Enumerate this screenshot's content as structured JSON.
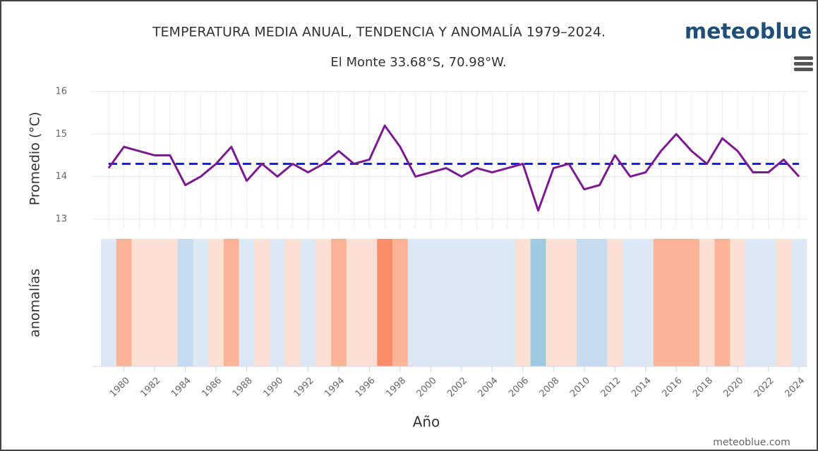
{
  "chart_data": {
    "type": "line",
    "title": "TEMPERATURA MEDIA ANUAL, TENDENCIA Y ANOMALÍA 1979–2024.",
    "subtitle": "El Monte 33.68°S, 70.98°W.",
    "brand": "meteoblue",
    "credit": "meteoblue.com",
    "ylabel": "Promedio (°C)",
    "anomaly_label": "anomalías",
    "xlabel": "Año",
    "x": [
      1979,
      1980,
      1981,
      1982,
      1983,
      1984,
      1985,
      1986,
      1987,
      1988,
      1989,
      1990,
      1991,
      1992,
      1993,
      1994,
      1995,
      1996,
      1997,
      1998,
      1999,
      2000,
      2001,
      2002,
      2003,
      2004,
      2005,
      2006,
      2007,
      2008,
      2009,
      2010,
      2011,
      2012,
      2013,
      2014,
      2015,
      2016,
      2017,
      2018,
      2019,
      2020,
      2021,
      2022,
      2023,
      2024
    ],
    "values": [
      14.2,
      14.7,
      14.6,
      14.5,
      14.5,
      13.8,
      14.0,
      14.3,
      14.7,
      13.9,
      14.3,
      14.0,
      14.3,
      14.1,
      14.3,
      14.6,
      14.3,
      14.4,
      15.2,
      14.7,
      14.0,
      14.1,
      14.2,
      14.0,
      14.2,
      14.1,
      14.2,
      14.3,
      13.2,
      14.2,
      14.3,
      13.7,
      13.8,
      14.5,
      14.0,
      14.1,
      14.6,
      15.0,
      14.6,
      14.3,
      14.9,
      14.6,
      14.1,
      14.1,
      14.4,
      14.0
    ],
    "color": "#7b1a8f",
    "trend": 14.3,
    "trend_color": "#1a1aff",
    "anomaly_colors": [
      "#dde8f5",
      "#fcb499",
      "#fde0d4",
      "#fde0d4",
      "#fde0d4",
      "#c6daf0",
      "#dde8f5",
      "#fde0d4",
      "#fcb499",
      "#dde8f5",
      "#fde0d4",
      "#dde8f5",
      "#fde0d4",
      "#dde8f5",
      "#fde0d4",
      "#fcb499",
      "#fde0d4",
      "#fde0d4",
      "#fc8d6a",
      "#fcb499",
      "#dde8f5",
      "#dde8f5",
      "#dde8f5",
      "#dde8f5",
      "#dde8f5",
      "#dde8f5",
      "#dde8f5",
      "#fde0d4",
      "#9ecae1",
      "#fde0d4",
      "#fde0d4",
      "#c6daf0",
      "#c6daf0",
      "#fde0d4",
      "#dde8f5",
      "#dde8f5",
      "#fcb499",
      "#fcb499",
      "#fcb499",
      "#fde0d4",
      "#fcb499",
      "#fde0d4",
      "#dde8f5",
      "#dde8f5",
      "#fde0d4",
      "#dde8f5"
    ],
    "xlim": [
      1978.5,
      2024.5
    ],
    "xticks": [
      1980,
      1982,
      1984,
      1986,
      1988,
      1990,
      1992,
      1994,
      1996,
      1998,
      2000,
      2002,
      2004,
      2006,
      2008,
      2010,
      2012,
      2014,
      2016,
      2018,
      2020,
      2022,
      2024
    ],
    "ylim": [
      12.5,
      16
    ],
    "yticks": [
      13,
      14,
      15,
      16
    ],
    "grid": true
  }
}
